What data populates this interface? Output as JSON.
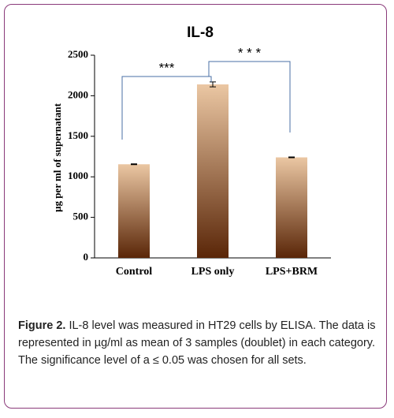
{
  "chart_data": {
    "type": "bar",
    "title": "IL-8",
    "y_label": "μg per ml of supernatant",
    "categories": [
      "Control",
      "LPS only",
      "LPS+BRM"
    ],
    "values": [
      1155,
      2140,
      1240
    ],
    "errors": [
      5,
      30,
      5
    ],
    "gradient": [
      "#ebc7a3",
      "#5a2608"
    ],
    "ylim": [
      0,
      2500
    ],
    "yticks": [
      0,
      500,
      1000,
      1500,
      2000,
      2500
    ],
    "annotations": [
      {
        "between": [
          0,
          1
        ],
        "label": "***"
      },
      {
        "between": [
          1,
          2
        ],
        "label": "* * *"
      }
    ]
  },
  "caption": {
    "label": "Figure 2.",
    "text": "IL-8 level was measured in HT29 cells by ELISA. The data is represented in µg/ml as mean of 3 samples (doublet) in each category. The significance level of a ≤ 0.05 was chosen for all sets."
  }
}
